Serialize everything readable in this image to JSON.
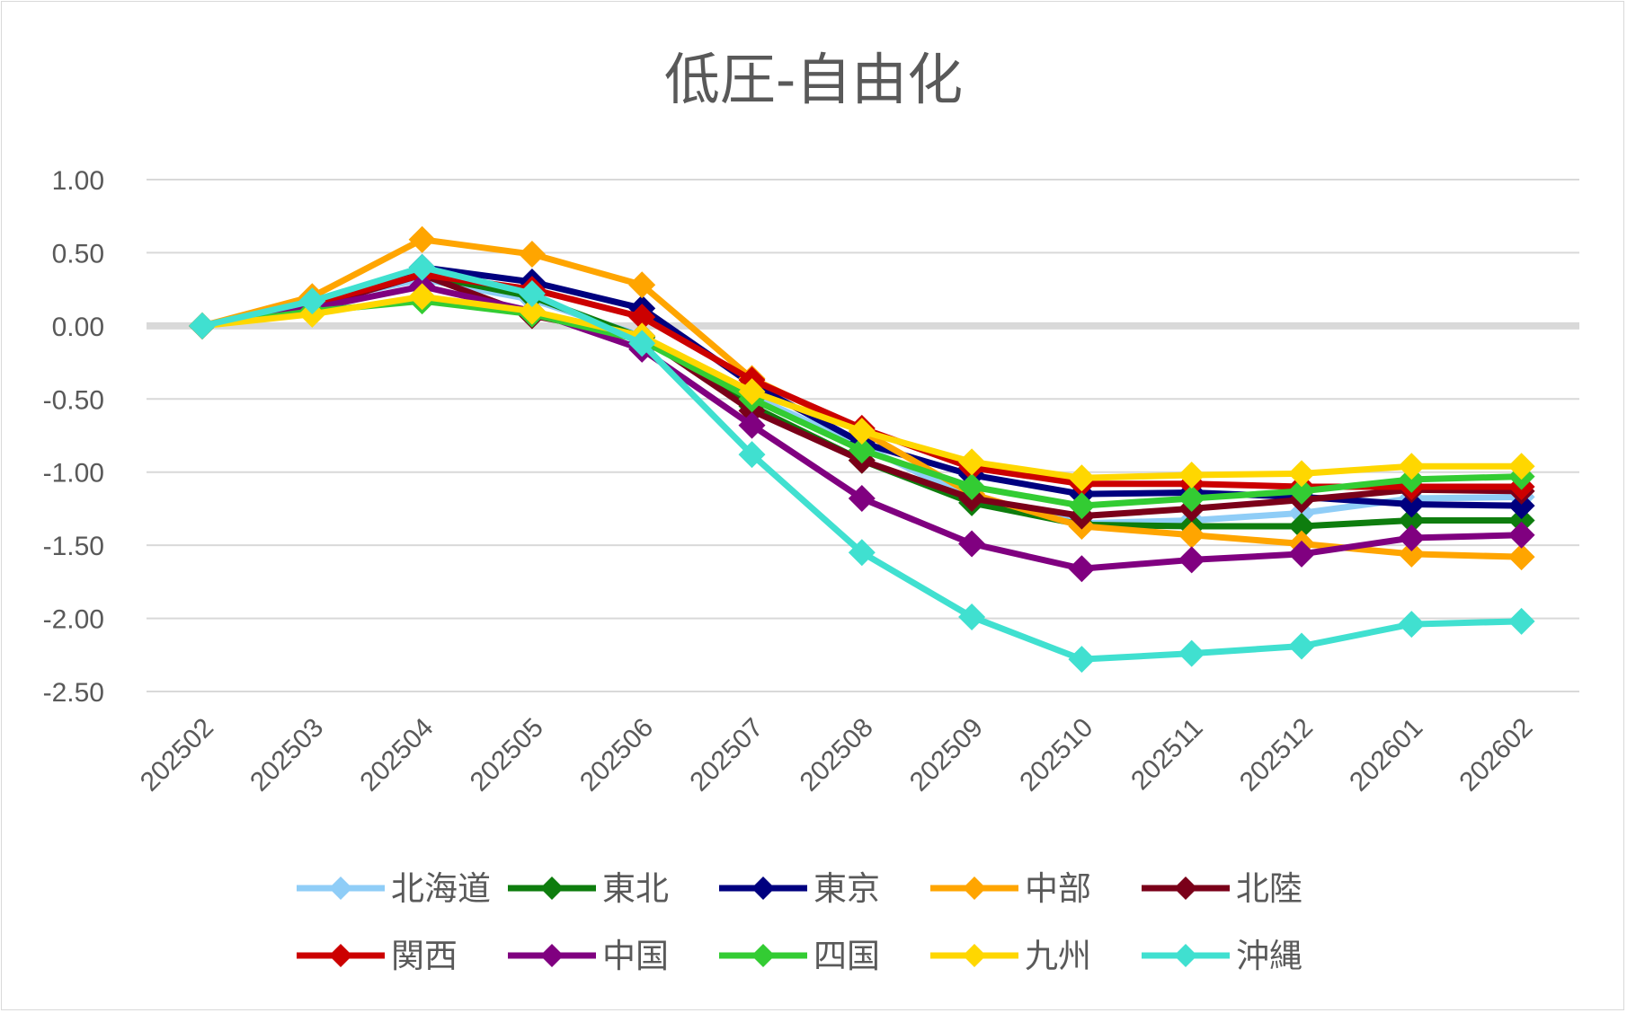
{
  "chart_data": {
    "type": "line",
    "title": "低圧-自由化",
    "xlabel": "",
    "ylabel": "",
    "ylim": [
      -2.5,
      1.0
    ],
    "ytick_step": 0.5,
    "ytick_labels": [
      "1.00",
      "0.50",
      "0.00",
      "-0.50",
      "-1.00",
      "-1.50",
      "-2.00",
      "-2.50"
    ],
    "grid": true,
    "legend_position": "bottom",
    "categories": [
      "202502",
      "202503",
      "202504",
      "202505",
      "202506",
      "202507",
      "202508",
      "202509",
      "202510",
      "202511",
      "202512",
      "202601",
      "202602"
    ],
    "series": [
      {
        "name": "北海道",
        "color": "#8fcdf7",
        "values": [
          0.0,
          0.16,
          0.32,
          0.18,
          -0.07,
          -0.48,
          -0.82,
          -1.18,
          -1.35,
          -1.33,
          -1.28,
          -1.18,
          -1.17
        ]
      },
      {
        "name": "東北",
        "color": "#0e7d0e",
        "values": [
          0.0,
          0.15,
          0.35,
          0.2,
          -0.08,
          -0.55,
          -0.92,
          -1.21,
          -1.36,
          -1.37,
          -1.37,
          -1.33,
          -1.33
        ]
      },
      {
        "name": "東京",
        "color": "#00007f",
        "values": [
          0.0,
          0.15,
          0.4,
          0.3,
          0.12,
          -0.4,
          -0.8,
          -1.02,
          -1.15,
          -1.14,
          -1.17,
          -1.22,
          -1.23
        ]
      },
      {
        "name": "中部",
        "color": "#ffa500",
        "values": [
          0.0,
          0.2,
          0.59,
          0.49,
          0.28,
          -0.36,
          -0.72,
          -1.15,
          -1.37,
          -1.43,
          -1.49,
          -1.56,
          -1.58
        ]
      },
      {
        "name": "北陸",
        "color": "#7a0019",
        "values": [
          0.0,
          0.13,
          0.35,
          0.07,
          -0.07,
          -0.58,
          -0.92,
          -1.18,
          -1.3,
          -1.25,
          -1.19,
          -1.12,
          -1.13
        ]
      },
      {
        "name": "関西",
        "color": "#cc0000",
        "values": [
          0.0,
          0.15,
          0.35,
          0.25,
          0.06,
          -0.37,
          -0.7,
          -0.97,
          -1.08,
          -1.08,
          -1.1,
          -1.1,
          -1.1
        ]
      },
      {
        "name": "中国",
        "color": "#800080",
        "values": [
          0.0,
          0.12,
          0.27,
          0.1,
          -0.16,
          -0.68,
          -1.18,
          -1.49,
          -1.66,
          -1.6,
          -1.56,
          -1.45,
          -1.43
        ]
      },
      {
        "name": "四国",
        "color": "#33cc33",
        "values": [
          0.0,
          0.1,
          0.17,
          0.08,
          -0.1,
          -0.5,
          -0.85,
          -1.1,
          -1.23,
          -1.18,
          -1.13,
          -1.05,
          -1.03
        ]
      },
      {
        "name": "九州",
        "color": "#ffd700",
        "values": [
          0.0,
          0.08,
          0.2,
          0.1,
          -0.07,
          -0.45,
          -0.72,
          -0.93,
          -1.04,
          -1.02,
          -1.01,
          -0.96,
          -0.96
        ]
      },
      {
        "name": "沖縄",
        "color": "#40e0d0",
        "values": [
          0.0,
          0.17,
          0.4,
          0.22,
          -0.12,
          -0.88,
          -1.55,
          -1.99,
          -2.28,
          -2.24,
          -2.19,
          -2.04,
          -2.02
        ]
      }
    ]
  }
}
